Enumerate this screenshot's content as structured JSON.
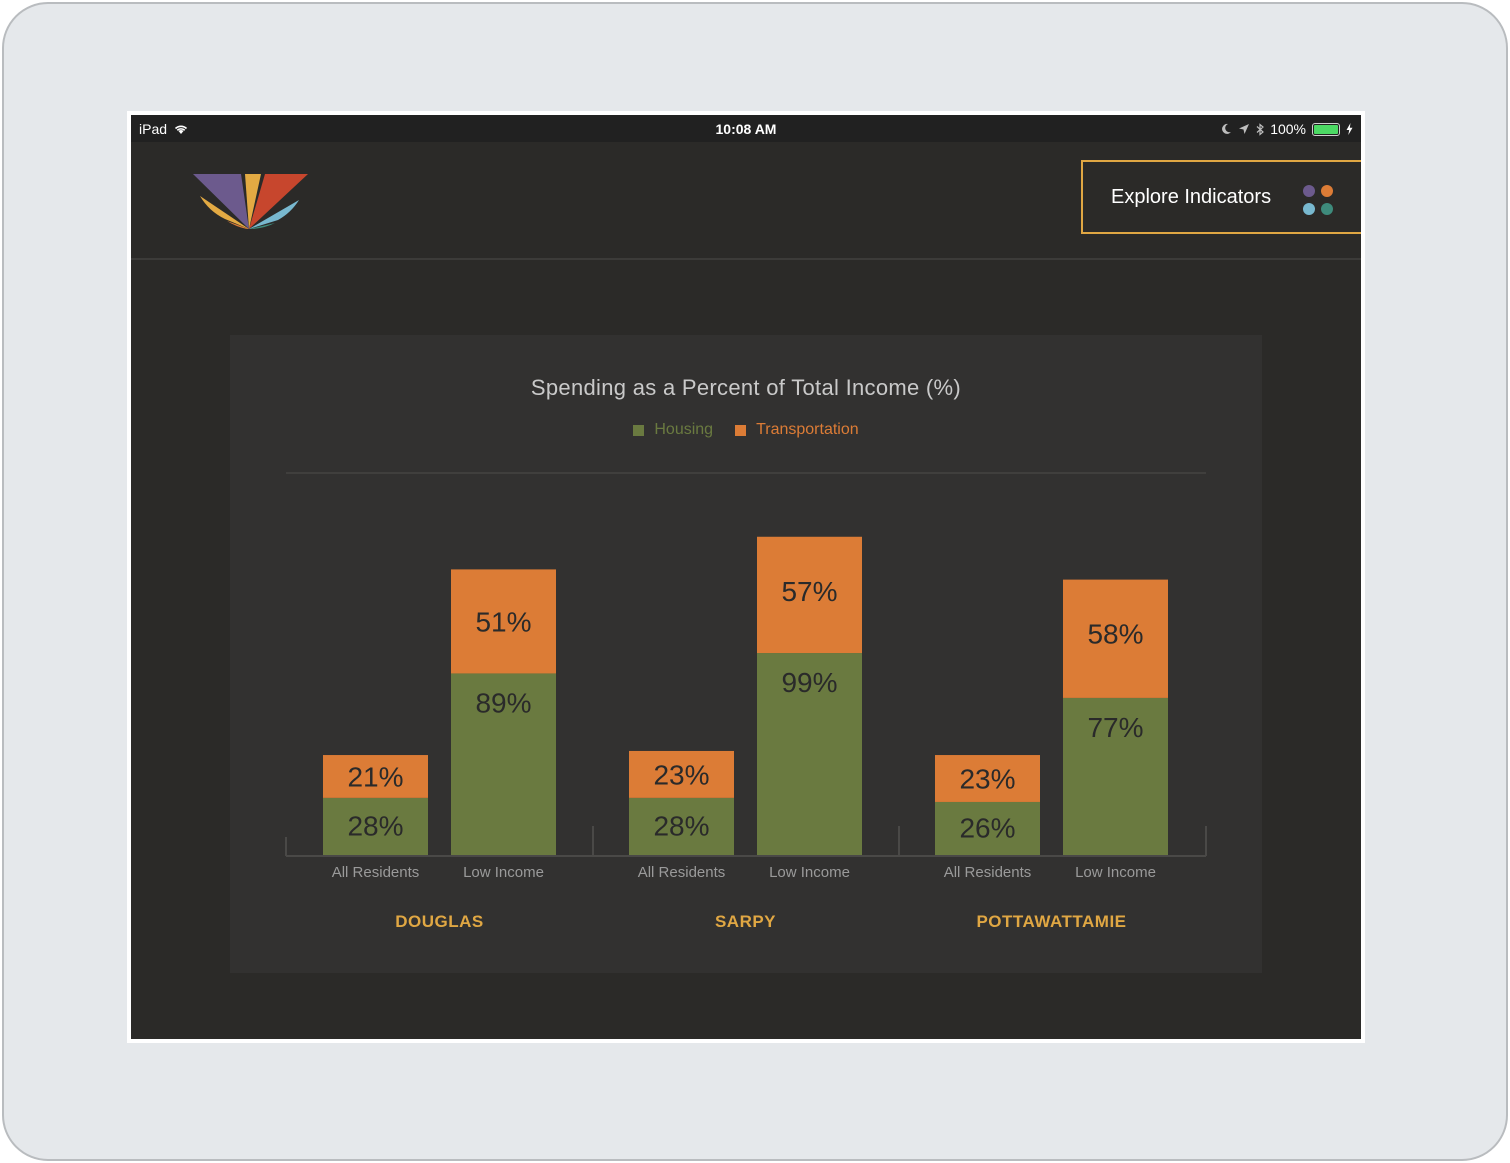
{
  "status_bar": {
    "device": "iPad",
    "time": "10:08 AM",
    "battery": "100%"
  },
  "header": {
    "explore_label": "Explore Indicators"
  },
  "colors": {
    "housing": "#6a7a40",
    "transportation": "#dc7c36",
    "county_label": "#e0a743",
    "accent_border": "#e0a743"
  },
  "chart_data": {
    "type": "bar",
    "stacked": true,
    "title": "Spending as a Percent of Total Income (%)",
    "legend": [
      "Housing",
      "Transportation"
    ],
    "legend_position": "top-center",
    "groups": [
      {
        "name": "DOUGLAS",
        "bars": [
          {
            "label": "All Residents",
            "housing": 28,
            "transportation": 21
          },
          {
            "label": "Low Income",
            "housing": 89,
            "transportation": 51
          }
        ]
      },
      {
        "name": "SARPY",
        "bars": [
          {
            "label": "All Residents",
            "housing": 28,
            "transportation": 23
          },
          {
            "label": "Low Income",
            "housing": 99,
            "transportation": 57
          }
        ]
      },
      {
        "name": "POTTAWATTAMIE",
        "bars": [
          {
            "label": "All Residents",
            "housing": 26,
            "transportation": 23
          },
          {
            "label": "Low Income",
            "housing": 77,
            "transportation": 58
          }
        ]
      }
    ]
  }
}
